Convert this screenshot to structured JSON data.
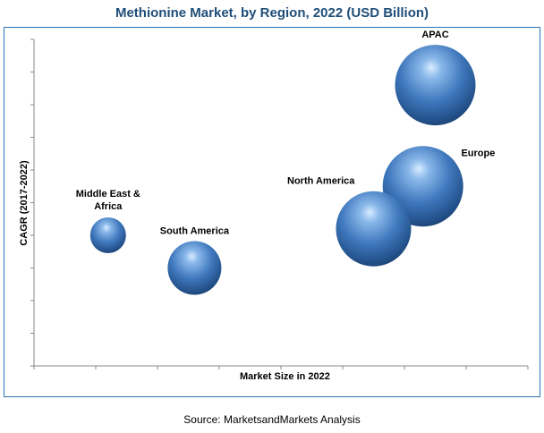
{
  "chart_data": {
    "type": "bubble",
    "title": "Methionine Market, by Region, 2022 (USD Billion)",
    "xlabel": "Market Size in 2022",
    "ylabel": "CAGR (2017-2022)",
    "xlim": [
      0,
      8
    ],
    "ylim": [
      0,
      10
    ],
    "grid": false,
    "series": [
      {
        "name": "APAC",
        "x": 6.5,
        "y": 8.6,
        "size": 45
      },
      {
        "name": "Europe",
        "x": 6.3,
        "y": 5.5,
        "size": 45
      },
      {
        "name": "North America",
        "x": 5.5,
        "y": 4.2,
        "size": 42
      },
      {
        "name": "Middle East & Africa",
        "x": 1.2,
        "y": 4.0,
        "size": 20
      },
      {
        "name": "South America",
        "x": 2.6,
        "y": 3.0,
        "size": 30
      }
    ]
  },
  "footer": {
    "source": "Source: MarketsandMarkets Analysis"
  }
}
